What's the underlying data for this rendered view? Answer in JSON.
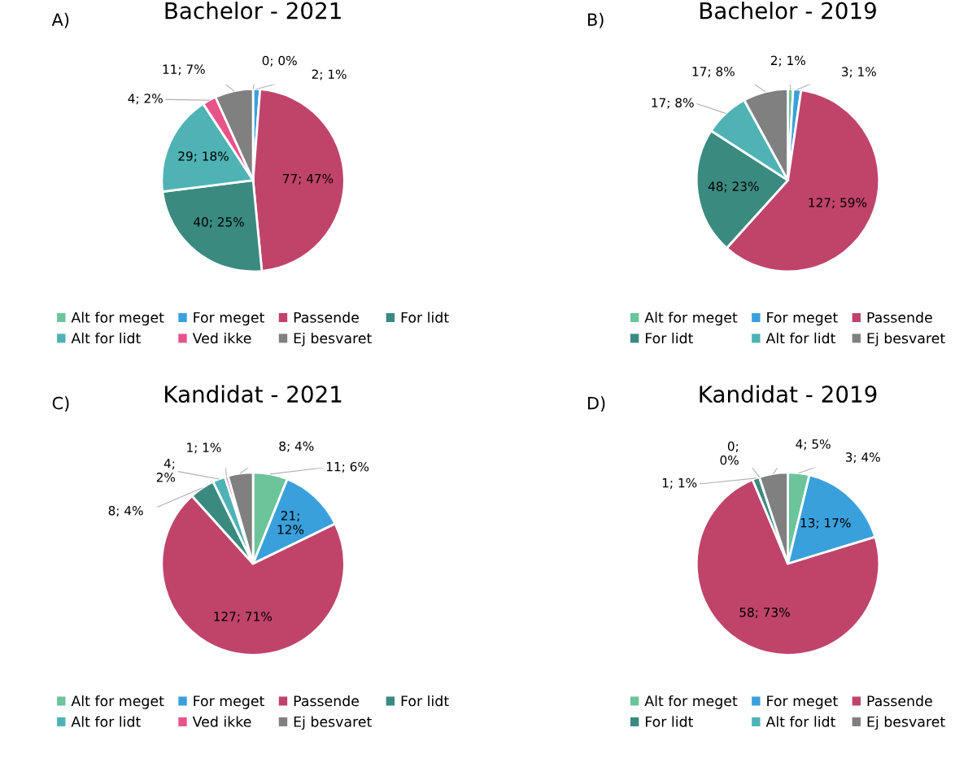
{
  "chart_data": [
    {
      "type": "pie",
      "title": "Bachelor - 2021",
      "annotations": [
        "A)"
      ],
      "legend": "bottom",
      "categories": [
        "Alt for meget",
        "For meget",
        "Passende",
        "For lidt",
        "Alt for lidt",
        "Ved ikke",
        "Ej besvaret"
      ],
      "values": [
        0,
        2,
        77,
        40,
        29,
        4,
        11
      ],
      "value_labels": [
        "0; 0%",
        "2; 1%",
        "77; 47%",
        "40; 25%",
        "29; 18%",
        "4; 2%",
        "11; 7%"
      ],
      "colors": [
        "#6cc49a",
        "#3aa0dc",
        "#c0446a",
        "#3a8a80",
        "#4fb3b5",
        "#e8538a",
        "#808080"
      ]
    },
    {
      "type": "pie",
      "title": "Bachelor - 2019",
      "annotations": [
        "B)"
      ],
      "legend": "bottom",
      "categories": [
        "Alt for meget",
        "For meget",
        "Passende",
        "For lidt",
        "Alt for lidt",
        "Ej besvaret"
      ],
      "values": [
        2,
        3,
        127,
        48,
        17,
        17
      ],
      "value_labels": [
        "2; 1%",
        "3; 1%",
        "127; 59%",
        "48; 23%",
        "17; 8%",
        "17; 8%"
      ],
      "colors": [
        "#6cc49a",
        "#3aa0dc",
        "#c0446a",
        "#3a8a80",
        "#4fb3b5",
        "#808080"
      ]
    },
    {
      "type": "pie",
      "title": "Kandidat - 2021",
      "annotations": [
        "C)"
      ],
      "legend": "bottom",
      "categories": [
        "Alt for meget",
        "For meget",
        "Passende",
        "For lidt",
        "Alt for lidt",
        "Ved ikke",
        "Ej besvaret"
      ],
      "values": [
        11,
        21,
        127,
        8,
        4,
        1,
        8
      ],
      "value_labels": [
        "11; 6%",
        "21;\n12%",
        "127; 71%",
        "8; 4%",
        "4;\n2%",
        "1; 1%",
        "8; 4%"
      ],
      "colors": [
        "#6cc49a",
        "#3aa0dc",
        "#c0446a",
        "#3a8a80",
        "#4fb3b5",
        "#e8538a",
        "#808080"
      ]
    },
    {
      "type": "pie",
      "title": "Kandidat - 2019",
      "annotations": [
        "D)"
      ],
      "legend": "bottom",
      "categories": [
        "Alt for meget",
        "For meget",
        "Passende",
        "For lidt",
        "Alt for lidt",
        "Ej besvaret"
      ],
      "values": [
        3,
        13,
        58,
        1,
        0,
        4
      ],
      "value_labels": [
        "3; 4%",
        "13; 17%",
        "58; 73%",
        "1; 1%",
        "0;\n0%",
        "4; 5%"
      ],
      "colors": [
        "#6cc49a",
        "#3aa0dc",
        "#c0446a",
        "#3a8a80",
        "#4fb3b5",
        "#808080"
      ]
    }
  ]
}
